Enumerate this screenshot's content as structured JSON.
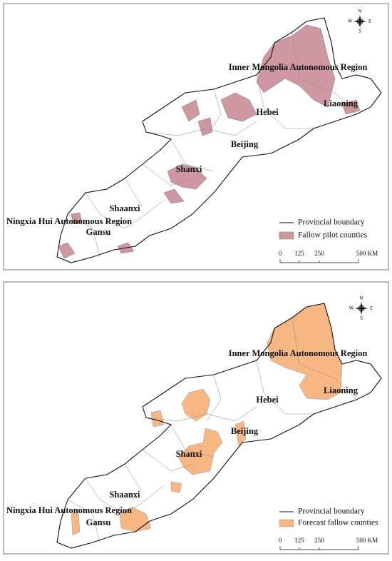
{
  "panels": [
    {
      "labels": {
        "inner_mongolia": "Inner Mongolia Autonomous Region",
        "liaoning": "Liaoning",
        "hebei": "Hebei",
        "beijing": "Beijing",
        "shanxi": "Shanxi",
        "shaanxi": "Shaanxi",
        "ningxia": "Ningxia Hui Autonomous Region",
        "gansu": "Gansu"
      },
      "legend": {
        "boundary": "Provincial boundary",
        "fill": "Fallow pilot counties"
      },
      "scale": [
        "0",
        "125",
        "250",
        "500 KM"
      ],
      "compass": {
        "n": "N",
        "e": "E",
        "s": "S",
        "w": "W"
      }
    },
    {
      "labels": {
        "inner_mongolia": "Inner Mongolia Autonomous Region",
        "liaoning": "Liaoning",
        "hebei": "Hebei",
        "beijing": "Beijing",
        "shanxi": "Shanxi",
        "shaanxi": "Shaanxi",
        "ningxia": "Ningxia Hui Autonomous Region",
        "gansu": "Gansu"
      },
      "legend": {
        "boundary": "Provincial boundary",
        "fill": "Forecast fallow counties"
      },
      "scale": [
        "0",
        "125",
        "250",
        "500 KM"
      ],
      "compass": {
        "n": "N",
        "e": "E",
        "s": "S",
        "w": "W"
      }
    }
  ]
}
